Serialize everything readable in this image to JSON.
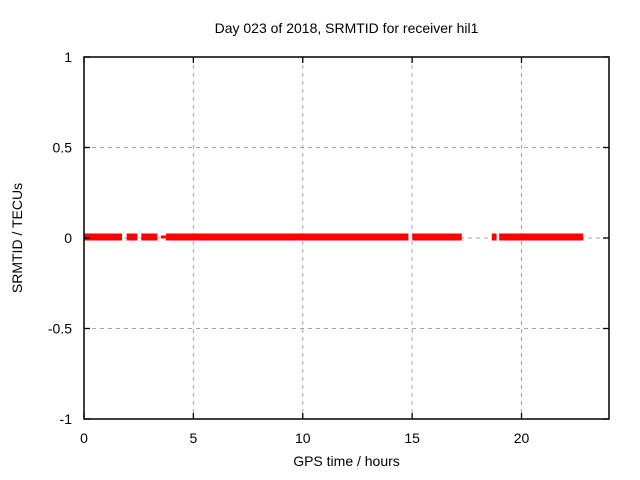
{
  "chart_data": {
    "type": "line",
    "title": "Day 023 of 2018, SRMTID for receiver hil1",
    "xlabel": "GPS time / hours",
    "ylabel": "SRMTID / TECUs",
    "xlim": [
      0,
      24
    ],
    "ylim": [
      -1,
      1
    ],
    "x_ticks": [
      {
        "v": 0,
        "label": "0"
      },
      {
        "v": 5,
        "label": "5"
      },
      {
        "v": 10,
        "label": "10"
      },
      {
        "v": 15,
        "label": "15"
      },
      {
        "v": 20,
        "label": "20"
      }
    ],
    "y_ticks": [
      {
        "v": -1,
        "label": "-1"
      },
      {
        "v": -0.5,
        "label": "-0.5"
      },
      {
        "v": 0,
        "label": "0"
      },
      {
        "v": 0.5,
        "label": "0.5"
      },
      {
        "v": 1,
        "label": "1"
      }
    ],
    "grid": {
      "show": true,
      "style": "dashed",
      "x_lines": [
        5,
        10,
        15,
        20
      ],
      "y_lines": [
        -0.5,
        0,
        0.5
      ]
    },
    "legend": "none",
    "series": [
      {
        "name": "SRMTID",
        "value_tecus": 0,
        "segments_hours": [
          {
            "start": 0.0,
            "end": 1.74,
            "weight": "thick"
          },
          {
            "start": 1.95,
            "end": 2.44,
            "weight": "thick"
          },
          {
            "start": 2.62,
            "end": 3.35,
            "weight": "thick"
          },
          {
            "start": 3.51,
            "end": 3.75,
            "weight": "thin"
          },
          {
            "start": 3.75,
            "end": 14.83,
            "weight": "thick"
          },
          {
            "start": 15.01,
            "end": 17.27,
            "weight": "thick"
          },
          {
            "start": 18.64,
            "end": 18.86,
            "weight": "thick"
          },
          {
            "start": 18.98,
            "end": 22.82,
            "weight": "thick"
          }
        ]
      }
    ]
  },
  "colors": {
    "series": "#ff0000",
    "grid": "#a6a6a6",
    "axis": "#000000",
    "text": "#000000",
    "background": "#ffffff"
  }
}
